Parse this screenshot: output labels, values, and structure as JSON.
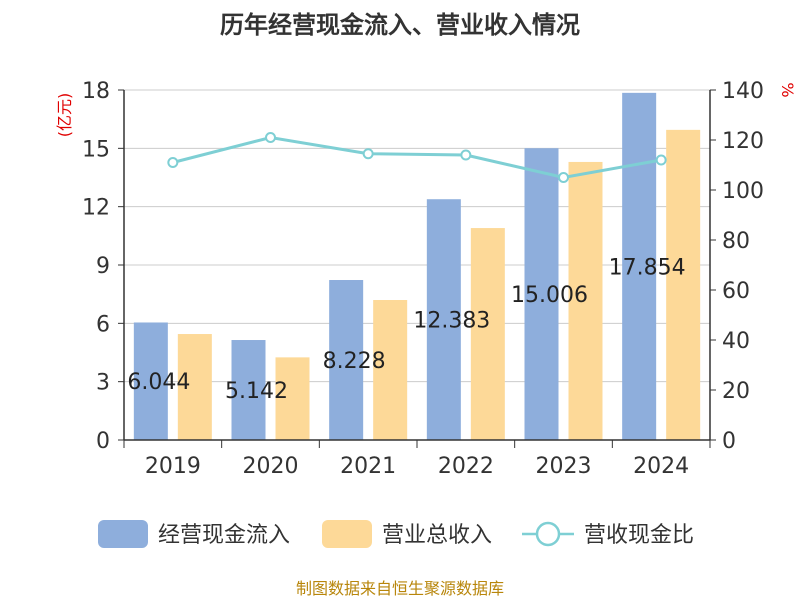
{
  "chart_data": {
    "type": "bar",
    "title": "历年经营现金流入、营业收入情况",
    "categories": [
      "2019",
      "2020",
      "2021",
      "2022",
      "2023",
      "2024"
    ],
    "series": [
      {
        "name": "经营现金流入",
        "kind": "bar",
        "axis": "left",
        "color": "#8eaedc",
        "values": [
          6.044,
          5.142,
          8.228,
          12.383,
          15.006,
          17.854
        ],
        "labels": [
          "6.044",
          "5.142",
          "8.228",
          "12.383",
          "15.006",
          "17.854"
        ]
      },
      {
        "name": "营业总收入",
        "kind": "bar",
        "axis": "left",
        "color": "#fdd998",
        "values": [
          5.45,
          4.25,
          7.2,
          10.9,
          14.3,
          15.95
        ]
      },
      {
        "name": "营收现金比",
        "kind": "line",
        "axis": "right",
        "color": "#7ecfd4",
        "values": [
          111,
          121,
          114.5,
          114,
          105,
          112
        ]
      }
    ],
    "y_left": {
      "label": "(亿元)",
      "ticks": [
        0,
        3,
        6,
        9,
        12,
        15,
        18
      ],
      "lim": [
        0,
        18
      ]
    },
    "y_right": {
      "label": "%",
      "ticks": [
        0,
        20,
        40,
        60,
        80,
        100,
        120,
        140
      ],
      "lim": [
        0,
        140
      ]
    },
    "grid": true,
    "legend_position": "bottom"
  },
  "source": "制图数据来自恒生聚源数据库",
  "colors": {
    "axis": "#333333",
    "grid": "#cccccc",
    "unit_label": "#e00000"
  }
}
